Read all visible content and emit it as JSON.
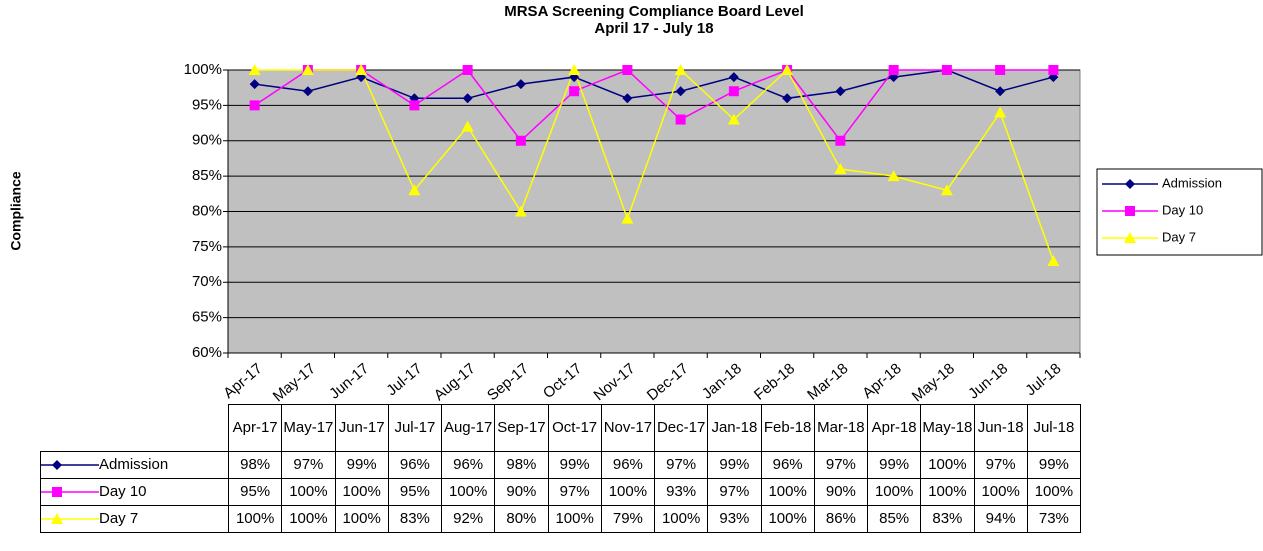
{
  "chart_data": {
    "type": "line",
    "title": "MRSA Screening Compliance Board Level",
    "subtitle": "April 17 - July 18",
    "y_label": "Compliance",
    "categories": [
      "Apr-17",
      "May-17",
      "Jun-17",
      "Jul-17",
      "Aug-17",
      "Sep-17",
      "Oct-17",
      "Nov-17",
      "Dec-17",
      "Jan-18",
      "Feb-18",
      "Mar-18",
      "Apr-18",
      "May-18",
      "Jun-18",
      "Jul-18"
    ],
    "series": [
      {
        "name": "Admission",
        "color": "#000080",
        "marker": "diamond",
        "values": [
          98,
          97,
          99,
          96,
          96,
          98,
          99,
          96,
          97,
          99,
          96,
          97,
          99,
          100,
          97,
          99
        ],
        "value_labels": [
          "98%",
          "97%",
          "99%",
          "96%",
          "96%",
          "98%",
          "99%",
          "96%",
          "97%",
          "99%",
          "96%",
          "97%",
          "99%",
          "100%",
          "97%",
          "99%"
        ]
      },
      {
        "name": "Day 10",
        "color": "#ff00ff",
        "marker": "square",
        "values": [
          95,
          100,
          100,
          95,
          100,
          90,
          97,
          100,
          93,
          97,
          100,
          90,
          100,
          100,
          100,
          100
        ],
        "value_labels": [
          "95%",
          "100%",
          "100%",
          "95%",
          "100%",
          "90%",
          "97%",
          "100%",
          "93%",
          "97%",
          "100%",
          "90%",
          "100%",
          "100%",
          "100%",
          "100%"
        ]
      },
      {
        "name": "Day 7",
        "color": "#ffff00",
        "marker": "triangle",
        "values": [
          100,
          100,
          100,
          83,
          92,
          80,
          100,
          79,
          100,
          93,
          100,
          86,
          85,
          83,
          94,
          73
        ],
        "value_labels": [
          "100%",
          "100%",
          "100%",
          "83%",
          "92%",
          "80%",
          "100%",
          "79%",
          "100%",
          "93%",
          "100%",
          "86%",
          "85%",
          "83%",
          "94%",
          "73%"
        ]
      }
    ],
    "ylim": [
      60,
      100
    ],
    "yticks": [
      {
        "value": 60,
        "label": "60%"
      },
      {
        "value": 65,
        "label": "65%"
      },
      {
        "value": 70,
        "label": "70%"
      },
      {
        "value": 75,
        "label": "75%"
      },
      {
        "value": 80,
        "label": "80%"
      },
      {
        "value": 85,
        "label": "85%"
      },
      {
        "value": 90,
        "label": "90%"
      },
      {
        "value": 95,
        "label": "95%"
      },
      {
        "value": 100,
        "label": "100%"
      }
    ],
    "grid": true,
    "legend": "right",
    "plot_background": "#c0c0c0"
  }
}
